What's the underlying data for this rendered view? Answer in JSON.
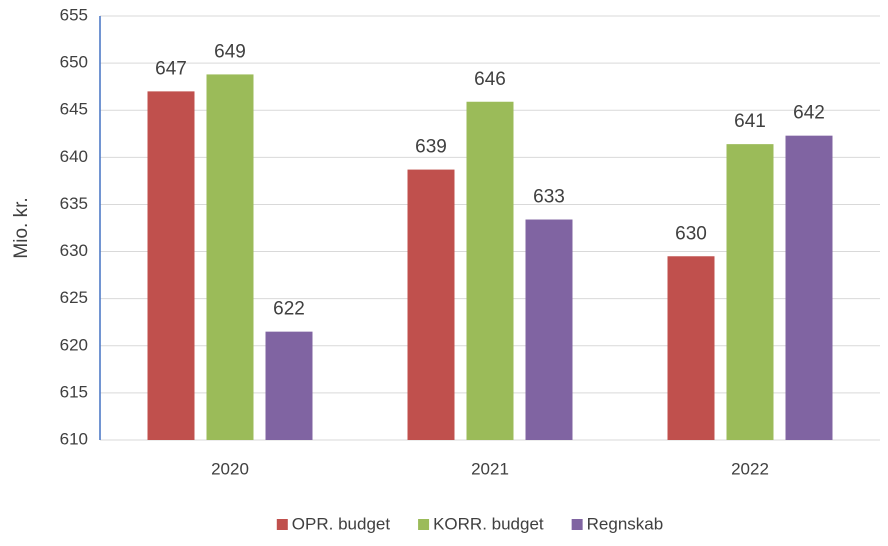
{
  "chart_data": {
    "type": "bar",
    "y_label": "Mio. kr.",
    "categories": [
      "2020",
      "2021",
      "2022"
    ],
    "series": [
      {
        "name": "OPR. budget",
        "color": "#c0504d",
        "values": [
          647.0,
          638.7,
          629.5
        ],
        "value_labels": [
          "647",
          "639",
          "630"
        ]
      },
      {
        "name": "KORR. budget",
        "color": "#9bbb59",
        "values": [
          648.8,
          645.9,
          641.4
        ],
        "value_labels": [
          "649",
          "646",
          "641"
        ]
      },
      {
        "name": "Regnskab",
        "color": "#8064a2",
        "values": [
          621.5,
          633.4,
          642.3
        ],
        "value_labels": [
          "622",
          "633",
          "642"
        ]
      }
    ],
    "ylim": [
      610,
      655
    ],
    "yticks": [
      610,
      615,
      620,
      625,
      630,
      635,
      640,
      645,
      650,
      655
    ],
    "grid": true,
    "legend": "bottom"
  }
}
